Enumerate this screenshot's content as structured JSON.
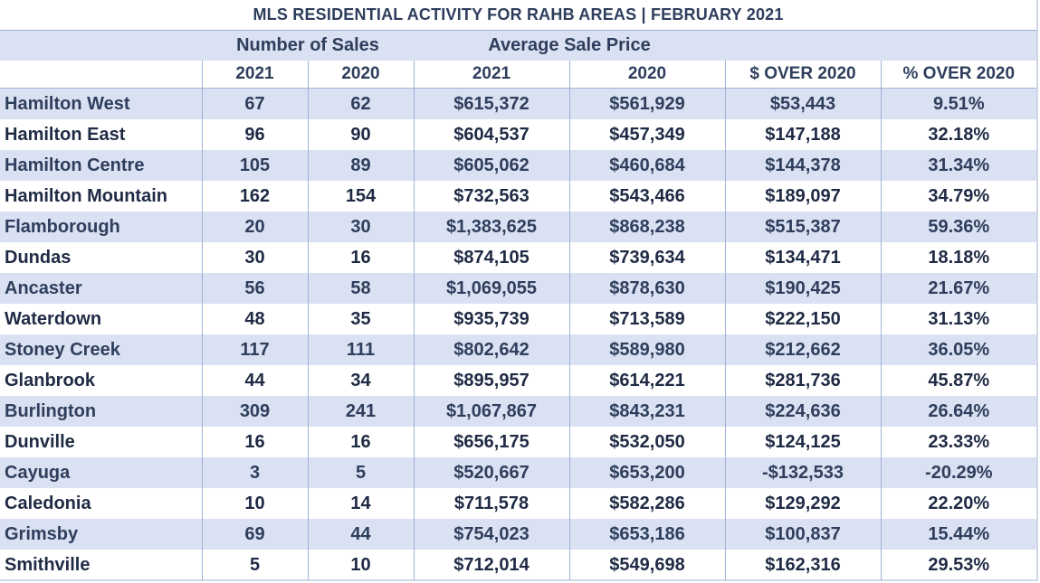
{
  "title": "MLS RESIDENTIAL ACTIVITY FOR RAHB AREAS | FEBRUARY 2021",
  "group_headers": {
    "sales": "Number of Sales",
    "price": "Average Sale Price"
  },
  "column_headers": [
    "",
    "2021",
    "2020",
    "2021",
    "2020",
    "$ OVER 2020",
    "% OVER 2020"
  ],
  "rows": [
    [
      "Hamilton West",
      "67",
      "62",
      "$615,372",
      "$561,929",
      "$53,443",
      "9.51%"
    ],
    [
      "Hamilton East",
      "96",
      "90",
      "$604,537",
      "$457,349",
      "$147,188",
      "32.18%"
    ],
    [
      "Hamilton Centre",
      "105",
      "89",
      "$605,062",
      "$460,684",
      "$144,378",
      "31.34%"
    ],
    [
      "Hamilton Mountain",
      "162",
      "154",
      "$732,563",
      "$543,466",
      "$189,097",
      "34.79%"
    ],
    [
      "Flamborough",
      "20",
      "30",
      "$1,383,625",
      "$868,238",
      "$515,387",
      "59.36%"
    ],
    [
      "Dundas",
      "30",
      "16",
      "$874,105",
      "$739,634",
      "$134,471",
      "18.18%"
    ],
    [
      "Ancaster",
      "56",
      "58",
      "$1,069,055",
      "$878,630",
      "$190,425",
      "21.67%"
    ],
    [
      "Waterdown",
      "48",
      "35",
      "$935,739",
      "$713,589",
      "$222,150",
      "31.13%"
    ],
    [
      "Stoney Creek",
      "117",
      "111",
      "$802,642",
      "$589,980",
      "$212,662",
      "36.05%"
    ],
    [
      "Glanbrook",
      "44",
      "34",
      "$895,957",
      "$614,221",
      "$281,736",
      "45.87%"
    ],
    [
      "Burlington",
      "309",
      "241",
      "$1,067,867",
      "$843,231",
      "$224,636",
      "26.64%"
    ],
    [
      "Dunville",
      "16",
      "16",
      "$656,175",
      "$532,050",
      "$124,125",
      "23.33%"
    ],
    [
      "Cayuga",
      "3",
      "5",
      "$520,667",
      "$653,200",
      "-$132,533",
      "-20.29%"
    ],
    [
      "Caledonia",
      "10",
      "14",
      "$711,578",
      "$582,286",
      "$129,292",
      "22.20%"
    ],
    [
      "Grimsby",
      "69",
      "44",
      "$754,023",
      "$653,186",
      "$100,837",
      "15.44%"
    ],
    [
      "Smithville",
      "5",
      "10",
      "$712,014",
      "$549,698",
      "$162,316",
      "29.53%"
    ]
  ]
}
